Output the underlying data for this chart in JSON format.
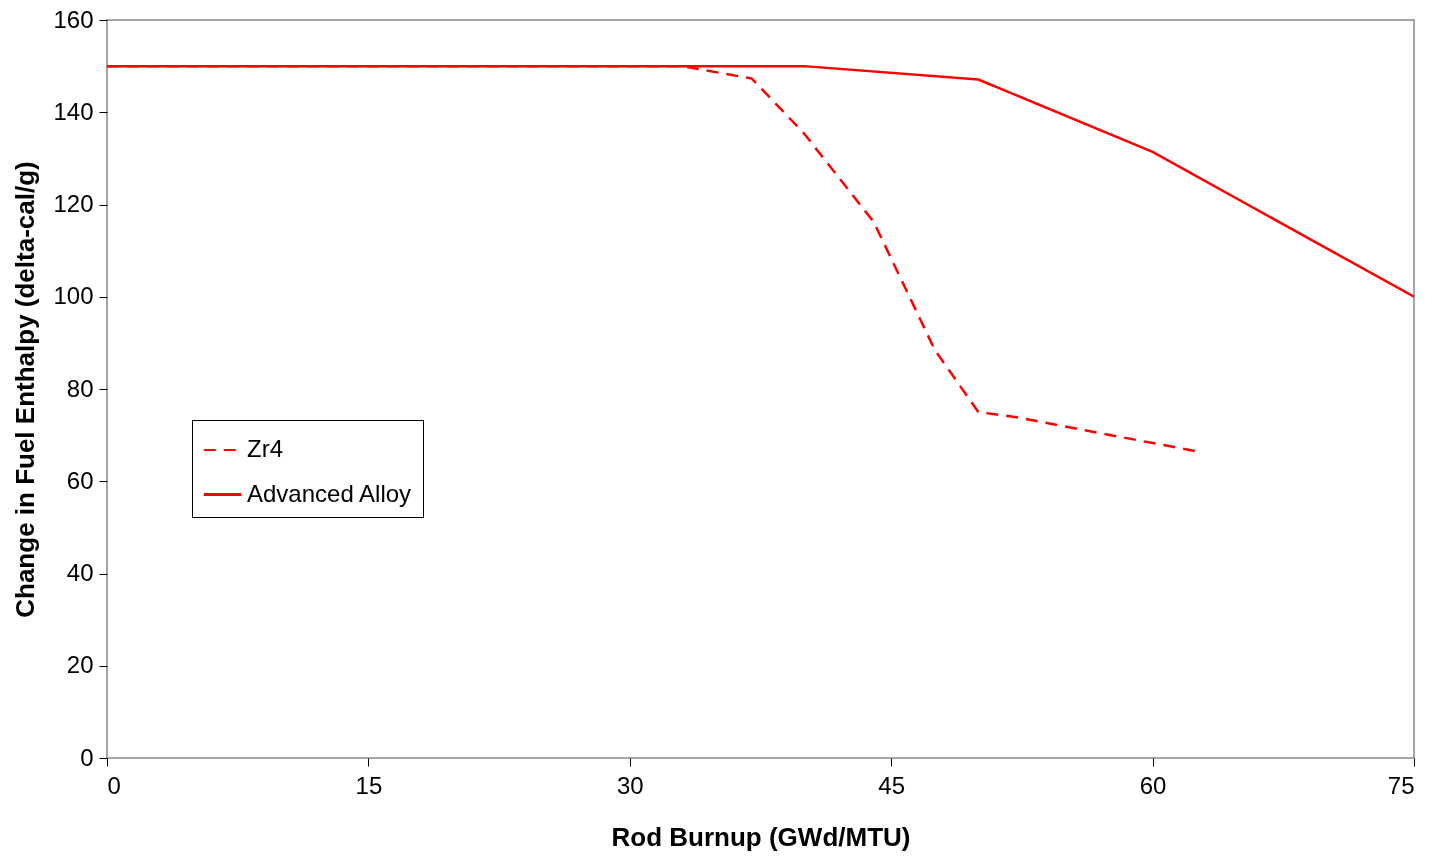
{
  "chart_data": {
    "type": "line",
    "xlabel": "Rod Burnup (GWd/MTU)",
    "ylabel": "Change in Fuel Enthalpy (delta-cal/g)",
    "xlim": [
      0,
      75
    ],
    "xticks": [
      0,
      15,
      30,
      45,
      60,
      75
    ],
    "ylim": [
      0,
      160
    ],
    "yticks": [
      0,
      20,
      40,
      60,
      80,
      100,
      120,
      140,
      160
    ],
    "grid": false,
    "legend": "left",
    "marker": "none",
    "series": [
      {
        "name": "Zr4",
        "color": "#ff0000",
        "line_style": "dashed",
        "x": [
          0,
          33,
          37,
          40,
          44,
          47.5,
          50,
          52,
          58.3,
          62.5
        ],
        "values": [
          150,
          150,
          147.3,
          135.4,
          116.2,
          88.5,
          75,
          74,
          69.5,
          66.5
        ]
      },
      {
        "name": "Advanced Alloy",
        "color": "#ff0000",
        "line_style": "solid",
        "x": [
          0,
          40,
          50,
          60,
          75
        ],
        "values": [
          150,
          150,
          147.1,
          131.4,
          100
        ]
      }
    ]
  }
}
